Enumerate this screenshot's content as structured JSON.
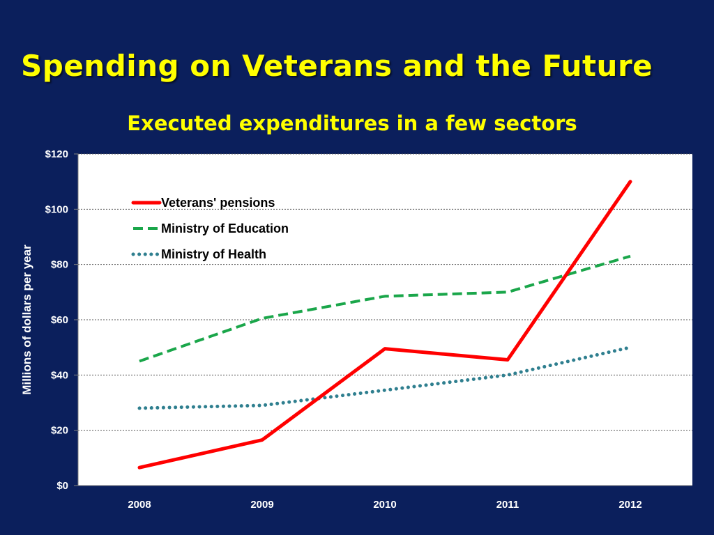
{
  "slide": {
    "title": "Spending on Veterans and the Future"
  },
  "colors": {
    "background": "#0b1f5c",
    "title": "#ffff00",
    "veterans": "#ff0000",
    "education": "#1aa64a",
    "health": "#2f7f8f"
  },
  "chart_data": {
    "type": "line",
    "title": "Executed expenditures in a few sectors",
    "xlabel": "",
    "ylabel": "Millions of dollars per year",
    "categories": [
      "2008",
      "2009",
      "2010",
      "2011",
      "2012"
    ],
    "yticks": [
      "$0",
      "$20",
      "$40",
      "$60",
      "$80",
      "$100",
      "$120"
    ],
    "ylim": [
      0,
      120
    ],
    "grid": true,
    "legend_position": "top-left",
    "series": [
      {
        "name": "Veterans' pensions",
        "style": "solid",
        "color": "#ff0000",
        "values": [
          6.5,
          16.5,
          49.5,
          45.5,
          110
        ]
      },
      {
        "name": "Ministry of Education",
        "style": "dashed",
        "color": "#1aa64a",
        "values": [
          45,
          60.5,
          68.5,
          70,
          83
        ]
      },
      {
        "name": "Ministry of Health",
        "style": "dotted",
        "color": "#2f7f8f",
        "values": [
          28,
          29,
          34.5,
          40,
          50
        ]
      }
    ]
  }
}
